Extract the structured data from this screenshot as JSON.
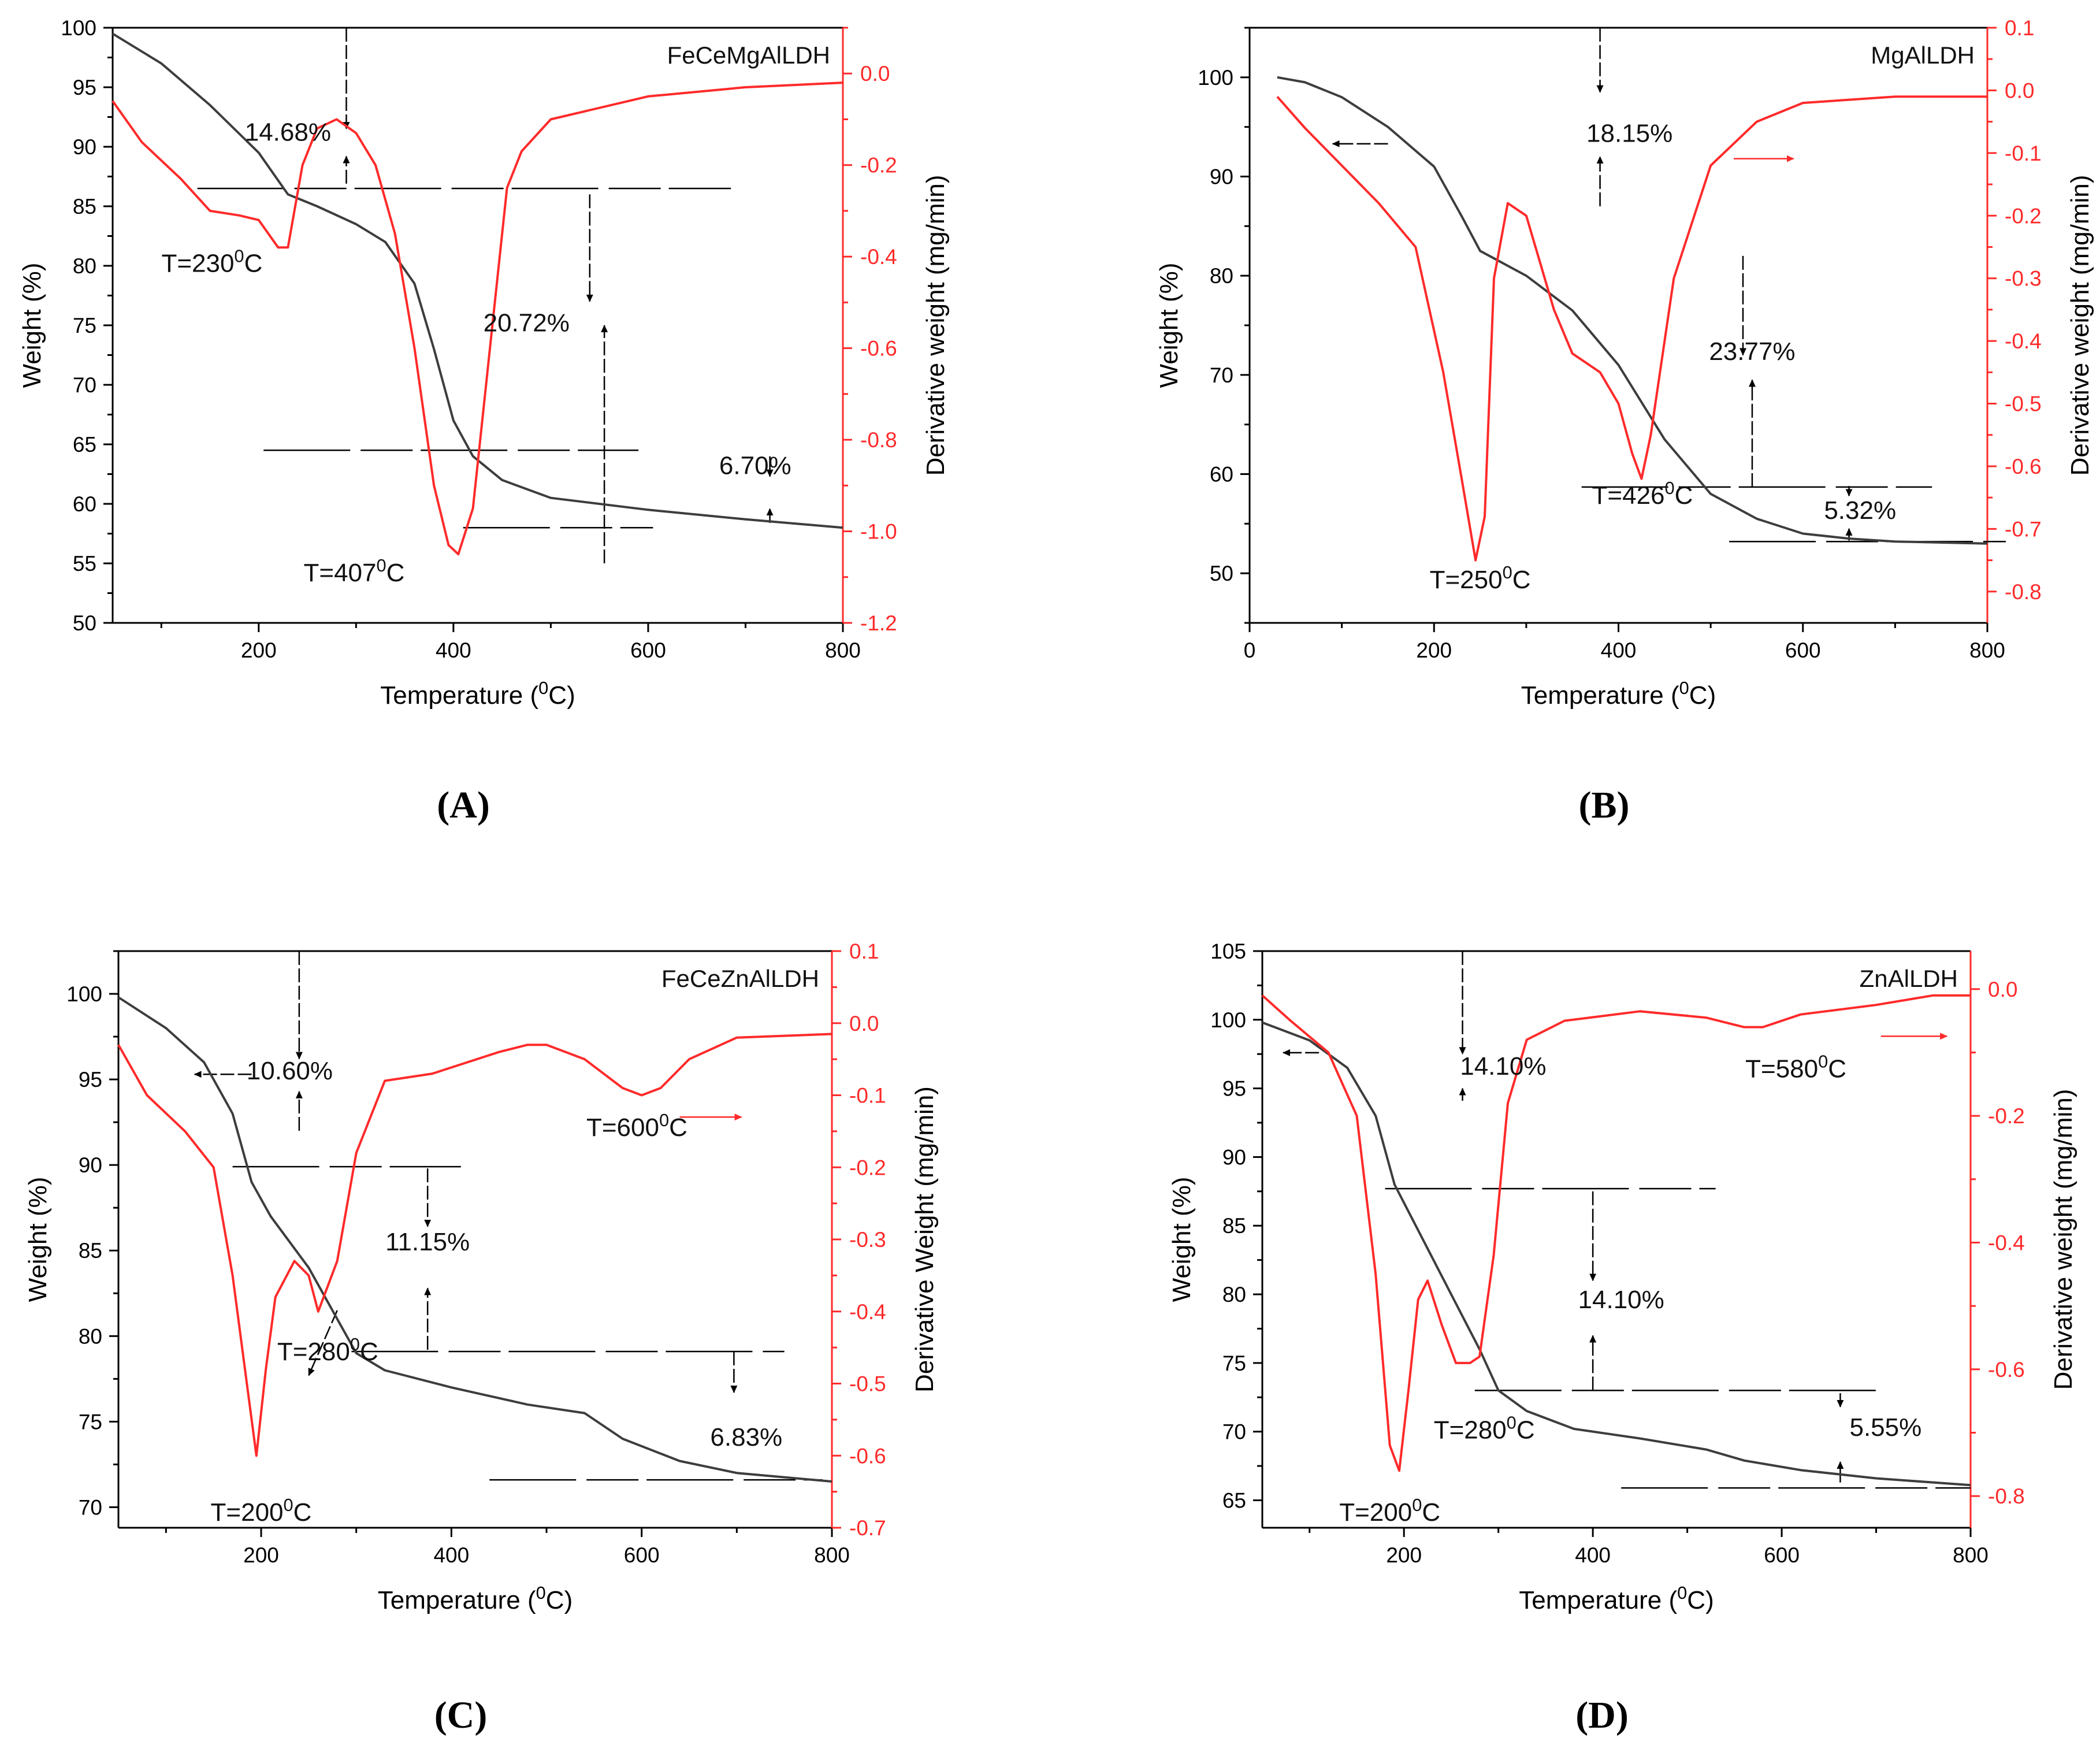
{
  "colors": {
    "weight": "#3d3d3d",
    "derivative": "#ff2a2a",
    "axis": "#000000",
    "guide": "#000000"
  },
  "chart_data": [
    {
      "panel": "(A)",
      "title": "FeCeMgAlLDH",
      "type": "line",
      "xlabel": "Temperature (⁰C)",
      "ylabel": "Weight (%)",
      "y2label": "Derivative weight (mg/min)",
      "xlim": [
        50,
        800
      ],
      "ylim": [
        50,
        100
      ],
      "y2lim": [
        -1.2,
        0.1
      ],
      "xticks": [
        "200",
        "400",
        "600",
        "800"
      ],
      "xtick_values": [
        200,
        400,
        600,
        800
      ],
      "yticks": [
        "50",
        "55",
        "60",
        "65",
        "70",
        "75",
        "80",
        "85",
        "90",
        "95",
        "100"
      ],
      "ytick_values": [
        50,
        55,
        60,
        65,
        70,
        75,
        80,
        85,
        90,
        95,
        100
      ],
      "y2ticks": [
        "-1.2",
        "-1.0",
        "-0.8",
        "-0.6",
        "-0.4",
        "-0.2",
        "0.0"
      ],
      "y2tick_values": [
        -1.2,
        -1.0,
        -0.8,
        -0.6,
        -0.4,
        -0.2,
        0.0
      ],
      "weight": {
        "x": [
          50,
          100,
          150,
          200,
          230,
          260,
          300,
          330,
          360,
          380,
          400,
          420,
          450,
          500,
          600,
          700,
          800
        ],
        "y": [
          99.5,
          97.0,
          93.5,
          89.5,
          86.0,
          85.0,
          83.5,
          82.0,
          78.5,
          73.0,
          67.0,
          64.0,
          62.0,
          60.5,
          59.5,
          58.7,
          58.0
        ]
      },
      "derivative": {
        "x": [
          50,
          80,
          120,
          150,
          180,
          200,
          220,
          230,
          245,
          260,
          280,
          300,
          320,
          340,
          360,
          380,
          395,
          405,
          420,
          440,
          455,
          470,
          500,
          600,
          700,
          800
        ],
        "y": [
          -0.06,
          -0.15,
          -0.23,
          -0.3,
          -0.31,
          -0.32,
          -0.38,
          -0.38,
          -0.2,
          -0.12,
          -0.1,
          -0.13,
          -0.2,
          -0.35,
          -0.6,
          -0.9,
          -1.03,
          -1.05,
          -0.95,
          -0.55,
          -0.25,
          -0.17,
          -0.1,
          -0.05,
          -0.03,
          -0.02
        ]
      },
      "annotations": [
        {
          "text": "T=230⁰C",
          "x": 152,
          "y": 79.5
        },
        {
          "text": "T=407⁰C",
          "x": 298,
          "y": 53.5
        },
        {
          "text": "14.68%",
          "x": 230,
          "y": 90.5
        },
        {
          "text": "20.72%",
          "x": 475,
          "y": 74.5
        },
        {
          "text": "6.70%",
          "x": 710,
          "y": 62.5
        }
      ],
      "guides": [
        [
          137,
          86.5,
          685,
          86.5
        ],
        [
          205,
          64.5,
          590,
          64.5
        ],
        [
          410,
          58.0,
          605,
          58.0
        ]
      ],
      "arrows": [
        [
          290,
          100,
          290,
          91.5
        ],
        [
          290,
          86.9,
          290,
          89.2
        ],
        [
          540,
          86.0,
          540,
          77.0
        ],
        [
          555,
          55.0,
          555,
          75.0
        ],
        [
          725,
          64.0,
          725,
          62.3
        ],
        [
          725,
          58.4,
          725,
          59.6
        ]
      ]
    },
    {
      "panel": "(B)",
      "title": "MgAlLDH",
      "type": "line",
      "xlabel": "Temperature (⁰C)",
      "ylabel": "Weight (%)",
      "y2label": "Derivative weight (mg/min)",
      "xlim": [
        0,
        800
      ],
      "ylim": [
        45,
        105
      ],
      "y2lim": [
        -0.85,
        0.1
      ],
      "xticks": [
        "0",
        "200",
        "400",
        "600",
        "800"
      ],
      "xtick_values": [
        0,
        200,
        400,
        600,
        800
      ],
      "yticks": [
        "50",
        "60",
        "70",
        "80",
        "90",
        "100"
      ],
      "ytick_values": [
        50,
        60,
        70,
        80,
        90,
        100
      ],
      "y2ticks": [
        "-0.8",
        "-0.7",
        "-0.6",
        "-0.5",
        "-0.4",
        "-0.3",
        "-0.2",
        "-0.1",
        "0.0",
        "0.1"
      ],
      "y2tick_values": [
        -0.8,
        -0.7,
        -0.6,
        -0.5,
        -0.4,
        -0.3,
        -0.2,
        -0.1,
        0.0,
        0.1
      ],
      "weight": {
        "x": [
          30,
          60,
          100,
          150,
          200,
          230,
          250,
          260,
          300,
          350,
          400,
          450,
          500,
          550,
          600,
          650,
          700,
          800
        ],
        "y": [
          100,
          99.5,
          98.0,
          95.0,
          91.0,
          86.0,
          82.5,
          82.0,
          80.0,
          76.5,
          71.0,
          63.5,
          58.0,
          55.5,
          54.0,
          53.5,
          53.2,
          53.0
        ]
      },
      "derivative": {
        "x": [
          30,
          60,
          100,
          140,
          180,
          210,
          230,
          245,
          255,
          265,
          280,
          300,
          330,
          350,
          380,
          400,
          415,
          425,
          435,
          460,
          500,
          550,
          600,
          700,
          800
        ],
        "y": [
          -0.01,
          -0.06,
          -0.12,
          -0.18,
          -0.25,
          -0.45,
          -0.62,
          -0.75,
          -0.68,
          -0.3,
          -0.18,
          -0.2,
          -0.35,
          -0.42,
          -0.45,
          -0.5,
          -0.58,
          -0.62,
          -0.55,
          -0.3,
          -0.12,
          -0.05,
          -0.02,
          -0.01,
          -0.01
        ]
      },
      "annotations": [
        {
          "text": "18.15%",
          "x": 412,
          "y": 93.5
        },
        {
          "text": "23.77%",
          "x": 545,
          "y": 71.5
        },
        {
          "text": "5.32%",
          "x": 662,
          "y": 55.5
        },
        {
          "text": "T=250⁰C",
          "x": 250,
          "y": 48.5
        },
        {
          "text": "T=426⁰C",
          "x": 426,
          "y": 57.0
        }
      ],
      "guides": [
        [
          360,
          58.7,
          740,
          58.7
        ],
        [
          520,
          53.2,
          820,
          53.2
        ]
      ],
      "arrows": [
        [
          380,
          105,
          380,
          98.5
        ],
        [
          380,
          87.0,
          380,
          92.0
        ],
        [
          535,
          82.0,
          535,
          72.0
        ],
        [
          545,
          58.7,
          545,
          69.5
        ],
        [
          650,
          58.8,
          650,
          57.8
        ],
        [
          650,
          53.3,
          650,
          54.5
        ],
        [
          150,
          93.3,
          90,
          93.3
        ]
      ],
      "derivative_arrow": [
        525,
        91.8,
        590,
        91.8
      ]
    },
    {
      "panel": "(C)",
      "title": "FeCeZnAlLDH",
      "type": "line",
      "xlabel": "Temperature (⁰C)",
      "ylabel": "Weight (%)",
      "y2label": "Derivative Weight (mg/min)",
      "xlim": [
        50,
        800
      ],
      "ylim": [
        68.8,
        102.5
      ],
      "y2lim": [
        -0.7,
        0.1
      ],
      "xticks": [
        "200",
        "400",
        "600",
        "800"
      ],
      "xtick_values": [
        200,
        400,
        600,
        800
      ],
      "yticks": [
        "70",
        "75",
        "80",
        "85",
        "90",
        "95",
        "100"
      ],
      "ytick_values": [
        70,
        75,
        80,
        85,
        90,
        95,
        100
      ],
      "y2ticks": [
        "-0.7",
        "-0.6",
        "-0.5",
        "-0.4",
        "-0.3",
        "-0.2",
        "-0.1",
        "0.0",
        "0.1"
      ],
      "y2tick_values": [
        -0.7,
        -0.6,
        -0.5,
        -0.4,
        -0.3,
        -0.2,
        -0.1,
        0.0,
        0.1
      ],
      "weight": {
        "x": [
          50,
          100,
          140,
          170,
          190,
          210,
          250,
          280,
          300,
          330,
          400,
          480,
          540,
          580,
          640,
          700,
          800
        ],
        "y": [
          99.8,
          98.0,
          96.0,
          93.0,
          89.0,
          87.0,
          84.0,
          81.0,
          79.0,
          78.0,
          77.0,
          76.0,
          75.5,
          74.0,
          72.7,
          72.0,
          71.5
        ]
      },
      "derivative": {
        "x": [
          50,
          80,
          120,
          150,
          170,
          185,
          195,
          205,
          215,
          235,
          250,
          260,
          280,
          300,
          330,
          380,
          450,
          480,
          500,
          540,
          580,
          600,
          620,
          650,
          700,
          800
        ],
        "y": [
          -0.03,
          -0.1,
          -0.15,
          -0.2,
          -0.35,
          -0.5,
          -0.6,
          -0.48,
          -0.38,
          -0.33,
          -0.35,
          -0.4,
          -0.33,
          -0.18,
          -0.08,
          -0.07,
          -0.04,
          -0.03,
          -0.03,
          -0.05,
          -0.09,
          -0.1,
          -0.09,
          -0.05,
          -0.02,
          -0.015
        ]
      },
      "annotations": [
        {
          "text": "10.60%",
          "x": 230,
          "y": 95.0
        },
        {
          "text": "11.15%",
          "x": 375,
          "y": 85.0
        },
        {
          "text": "6.83%",
          "x": 710,
          "y": 73.6
        },
        {
          "text": "T=200⁰C",
          "x": 200,
          "y": 69.2
        },
        {
          "text": "T=280⁰C",
          "x": 270,
          "y": 78.6
        },
        {
          "text": "T=600⁰C",
          "x": 595,
          "y": 91.7
        }
      ],
      "guides": [
        [
          170,
          89.9,
          410,
          89.9
        ],
        [
          295,
          79.1,
          750,
          79.1
        ],
        [
          440,
          71.6,
          790,
          71.6
        ]
      ],
      "arrows": [
        [
          240,
          102.5,
          240,
          96.2
        ],
        [
          240,
          92.0,
          240,
          94.3
        ],
        [
          375,
          89.8,
          375,
          86.4
        ],
        [
          375,
          79.2,
          375,
          82.8
        ],
        [
          697,
          79.1,
          697,
          76.7
        ],
        [
          190,
          95.3,
          130,
          95.3
        ],
        [
          280,
          81.5,
          250,
          77.7
        ]
      ],
      "derivative_arrow": [
        640,
        92.8,
        705,
        92.8
      ]
    },
    {
      "panel": "(D)",
      "title": "ZnAlLDH",
      "type": "line",
      "xlabel": "Temperature (⁰C)",
      "ylabel": "Weight (%)",
      "y2label": "Derivative weight (mg/min)",
      "xlim": [
        50,
        800
      ],
      "ylim": [
        63,
        105
      ],
      "y2lim": [
        -0.85,
        0.06
      ],
      "xticks": [
        "200",
        "400",
        "600",
        "800"
      ],
      "xtick_values": [
        200,
        400,
        600,
        800
      ],
      "yticks": [
        "65",
        "70",
        "75",
        "80",
        "85",
        "90",
        "95",
        "100",
        "105"
      ],
      "ytick_values": [
        65,
        70,
        75,
        80,
        85,
        90,
        95,
        100,
        105
      ],
      "y2ticks": [
        "-0.8",
        "-0.6",
        "-0.4",
        "-0.2",
        "0.0"
      ],
      "y2tick_values": [
        -0.8,
        -0.6,
        -0.4,
        -0.2,
        0.0
      ],
      "weight": {
        "x": [
          50,
          100,
          140,
          170,
          190,
          220,
          250,
          280,
          300,
          330,
          380,
          450,
          520,
          560,
          620,
          700,
          800
        ],
        "y": [
          99.8,
          98.5,
          96.5,
          93.0,
          88.0,
          84.0,
          80.0,
          76.0,
          73.0,
          71.5,
          70.2,
          69.5,
          68.7,
          67.9,
          67.2,
          66.6,
          66.1
        ]
      },
      "derivative": {
        "x": [
          50,
          80,
          120,
          150,
          170,
          185,
          195,
          205,
          215,
          225,
          240,
          255,
          270,
          280,
          295,
          310,
          330,
          370,
          450,
          520,
          560,
          580,
          620,
          700,
          760,
          800
        ],
        "y": [
          -0.01,
          -0.05,
          -0.1,
          -0.2,
          -0.45,
          -0.72,
          -0.76,
          -0.63,
          -0.49,
          -0.46,
          -0.53,
          -0.59,
          -0.59,
          -0.58,
          -0.42,
          -0.18,
          -0.08,
          -0.05,
          -0.035,
          -0.045,
          -0.06,
          -0.06,
          -0.04,
          -0.025,
          -0.01,
          -0.01
        ]
      },
      "annotations": [
        {
          "text": "14.10%",
          "x": 305,
          "y": 96.0
        },
        {
          "text": "14.10%",
          "x": 430,
          "y": 79.0
        },
        {
          "text": "5.55%",
          "x": 710,
          "y": 69.7
        },
        {
          "text": "T=200⁰C",
          "x": 185,
          "y": 63.5
        },
        {
          "text": "T=280⁰C",
          "x": 285,
          "y": 69.5
        },
        {
          "text": "T=580⁰C",
          "x": 615,
          "y": 95.8
        }
      ],
      "guides": [
        [
          180,
          87.7,
          530,
          87.7
        ],
        [
          275,
          73.0,
          700,
          73.0
        ],
        [
          430,
          65.9,
          800,
          65.9
        ]
      ],
      "arrows": [
        [
          262,
          105,
          262,
          97.5
        ],
        [
          262,
          94.1,
          262,
          95.0
        ],
        [
          400,
          87.5,
          400,
          81.0
        ],
        [
          400,
          73.0,
          400,
          77.0
        ],
        [
          662,
          72.8,
          662,
          71.8
        ],
        [
          662,
          66.3,
          662,
          67.8
        ],
        [
          110,
          97.6,
          72,
          97.6
        ]
      ],
      "derivative_arrow": [
        705,
        98.8,
        775,
        98.8
      ]
    }
  ]
}
